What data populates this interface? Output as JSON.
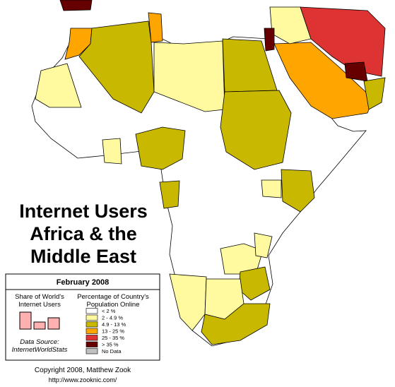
{
  "title": [
    "Internet Users",
    "Africa & the",
    "Middle East"
  ],
  "legend": {
    "date": "February 2008",
    "share_heading": [
      "Share of World's",
      "Internet Users"
    ],
    "pct_heading": [
      "Percentage of Country's",
      "Population Online"
    ],
    "classes": [
      {
        "label": "< 2 %",
        "color": "#ffffff"
      },
      {
        "label": "2 - 4.9 %",
        "color": "#fffaa0"
      },
      {
        "label": "4.9 - 13 %",
        "color": "#c9b800"
      },
      {
        "label": "13 - 25 %",
        "color": "#ffa500"
      },
      {
        "label": "25 - 35 %",
        "color": "#dd3333"
      },
      {
        "label": "> 35 %",
        "color": "#660000"
      },
      {
        "label": "No Data",
        "color": "#c0c0c0"
      }
    ],
    "source": [
      "Data Source:",
      "InternetWorldStats"
    ]
  },
  "credit": [
    "Copyright 2008, Matthew Zook",
    "http://www.zooknic.com/"
  ]
}
